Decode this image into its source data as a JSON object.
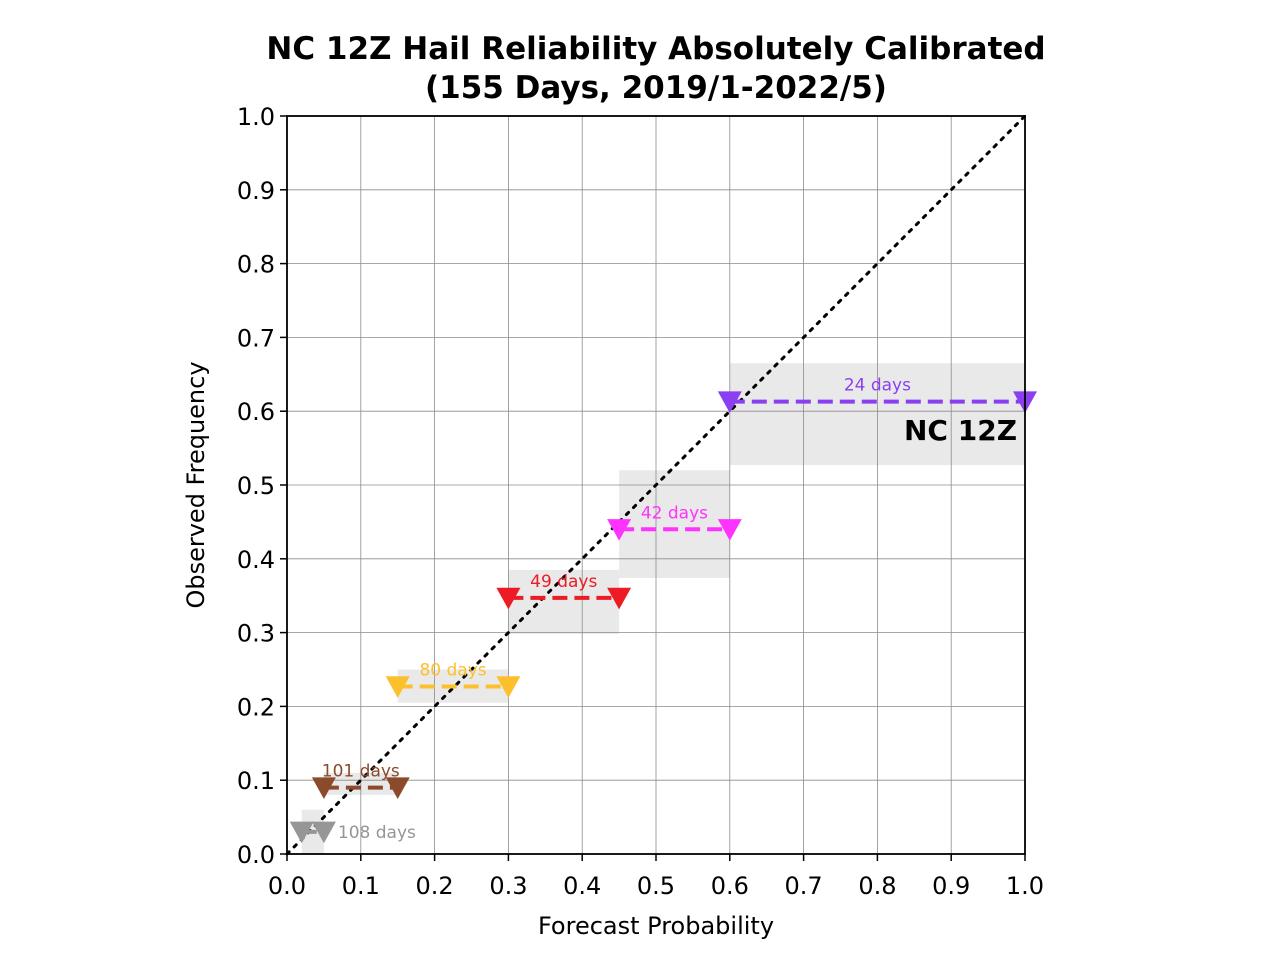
{
  "chart_data": {
    "type": "scatter",
    "title": "NC 12Z Hail Reliability Absolutely Calibrated",
    "subtitle": "(155 Days, 2019/1-2022/5)",
    "xlabel": "Forecast Probability",
    "ylabel": "Observed Frequency",
    "xlim": [
      0.0,
      1.0
    ],
    "ylim": [
      0.0,
      1.0
    ],
    "xticks": [
      "0.0",
      "0.1",
      "0.2",
      "0.3",
      "0.4",
      "0.5",
      "0.6",
      "0.7",
      "0.8",
      "0.9",
      "1.0"
    ],
    "yticks": [
      "0.0",
      "0.1",
      "0.2",
      "0.3",
      "0.4",
      "0.5",
      "0.6",
      "0.7",
      "0.8",
      "0.9",
      "1.0"
    ],
    "grid": true,
    "reference_line": "perfect reliability (diagonal)",
    "region_label": "NC 12Z",
    "bins": [
      {
        "x_low": 0.02,
        "x_high": 0.05,
        "y": 0.03,
        "y_range": [
          0.0,
          0.06
        ],
        "days": "108 days",
        "color": "#969696"
      },
      {
        "x_low": 0.05,
        "x_high": 0.15,
        "y": 0.09,
        "y_range": [
          0.08,
          0.11
        ],
        "days": "101 days",
        "color": "#8b4a2b"
      },
      {
        "x_low": 0.15,
        "x_high": 0.3,
        "y": 0.227,
        "y_range": [
          0.205,
          0.25
        ],
        "days": "80 days",
        "color": "#fdc02d"
      },
      {
        "x_low": 0.3,
        "x_high": 0.45,
        "y": 0.347,
        "y_range": [
          0.298,
          0.385
        ],
        "days": "49 days",
        "color": "#ed1c24"
      },
      {
        "x_low": 0.45,
        "x_high": 0.6,
        "y": 0.44,
        "y_range": [
          0.374,
          0.52
        ],
        "days": "42 days",
        "color": "#ff33ff"
      },
      {
        "x_low": 0.6,
        "x_high": 1.0,
        "y": 0.613,
        "y_range": [
          0.527,
          0.665
        ],
        "days": "24 days",
        "color": "#8a3ff0"
      }
    ]
  }
}
